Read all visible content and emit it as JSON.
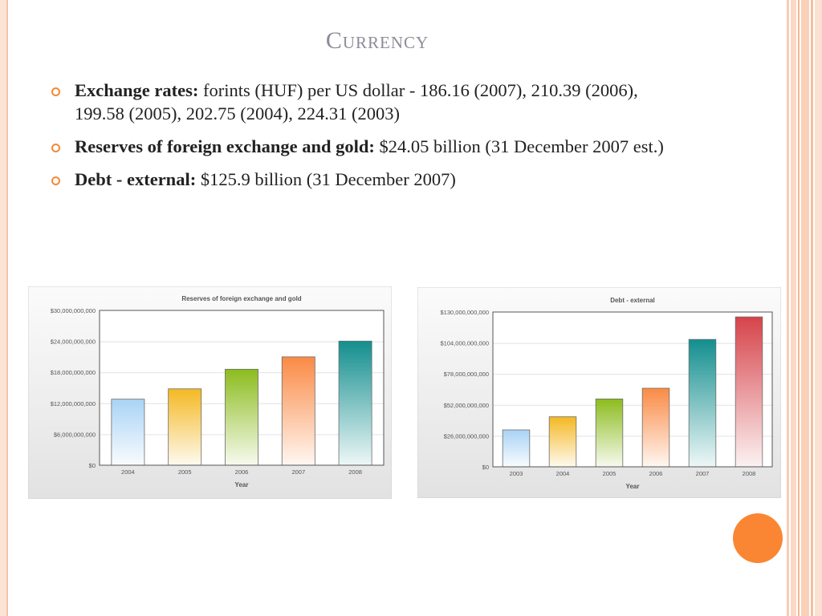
{
  "slide": {
    "title": "Currency"
  },
  "bullets": [
    {
      "label": "Exchange rates:",
      "text": " forints (HUF) per US dollar - 186.16 (2007), 210.39 (2006), 199.58 (2005), 202.75 (2004), 224.31 (2003)"
    },
    {
      "label": "Reserves of foreign exchange and gold:",
      "text": " $24.05 billion (31 December 2007 est.)"
    },
    {
      "label": "Debt - external:",
      "text": " $125.9 billion (31 December 2007)"
    }
  ],
  "colors": {
    "accent": "#f48a36",
    "title": "#8c8c9a"
  },
  "chart_data": [
    {
      "type": "bar",
      "title": "Reserves of foreign exchange and gold",
      "xlabel": "Year",
      "ylabel": "",
      "categories": [
        "2004",
        "2005",
        "2006",
        "2007",
        "2008"
      ],
      "values": [
        12800000000,
        14800000000,
        18600000000,
        21000000000,
        24050000000
      ],
      "ylim": [
        0,
        30000000000
      ],
      "yticks": [
        0,
        6000000000,
        12000000000,
        18000000000,
        24000000000,
        30000000000
      ],
      "ytick_labels": [
        "$0",
        "$6,000,000,000",
        "$12,000,000,000",
        "$18,000,000,000",
        "$24,000,000,000",
        "$30,000,000,000"
      ],
      "bar_colors": [
        "#a9d3f5",
        "#f4b823",
        "#8cbc1e",
        "#fa8a45",
        "#138e8e"
      ],
      "grid": true
    },
    {
      "type": "bar",
      "title": "Debt - external",
      "xlabel": "Year",
      "ylabel": "",
      "categories": [
        "2003",
        "2004",
        "2005",
        "2006",
        "2007",
        "2008"
      ],
      "values": [
        31000000000,
        42000000000,
        57000000000,
        66000000000,
        107000000000,
        125900000000
      ],
      "ylim": [
        0,
        130000000000
      ],
      "yticks": [
        0,
        26000000000,
        52000000000,
        78000000000,
        104000000000,
        130000000000
      ],
      "ytick_labels": [
        "$0",
        "$26,000,000,000",
        "$52,000,000,000",
        "$78,000,000,000",
        "$104,000,000,000",
        "$130,000,000,000"
      ],
      "bar_colors": [
        "#a9d3f5",
        "#f4b823",
        "#8cbc1e",
        "#fa8a45",
        "#138e8e",
        "#d6434a"
      ],
      "grid": true
    }
  ]
}
